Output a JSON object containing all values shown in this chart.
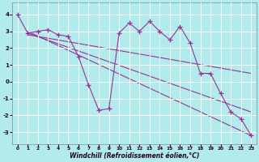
{
  "xlabel": "Windchill (Refroidissement éolien,°C)",
  "bg_color": "#b2ebeb",
  "grid_color": "#ffffff",
  "line_color": "#993399",
  "xlim": [
    -0.5,
    23.5
  ],
  "ylim": [
    -3.7,
    4.7
  ],
  "yticks": [
    -3,
    -2,
    -1,
    0,
    1,
    2,
    3,
    4
  ],
  "xticks": [
    0,
    1,
    2,
    3,
    4,
    5,
    6,
    7,
    8,
    9,
    10,
    11,
    12,
    13,
    14,
    15,
    16,
    17,
    18,
    19,
    20,
    21,
    22,
    23
  ],
  "series": {
    "line1_x": [
      0,
      1,
      2,
      3,
      4,
      5,
      6,
      7,
      8,
      9,
      10,
      11,
      12,
      13,
      14,
      15,
      16,
      17,
      18,
      19,
      20,
      21,
      22,
      23
    ],
    "line1_y": [
      4.0,
      2.9,
      3.0,
      3.1,
      2.8,
      2.7,
      1.5,
      -0.2,
      -1.7,
      -1.6,
      2.9,
      3.5,
      3.0,
      3.6,
      3.0,
      2.5,
      3.3,
      2.3,
      0.5,
      0.5,
      -0.7,
      -1.8,
      -2.2,
      -3.2
    ],
    "line2_x": [
      1,
      23
    ],
    "line2_y": [
      3.0,
      -3.2
    ],
    "line3_x": [
      1,
      23
    ],
    "line3_y": [
      2.9,
      -1.8
    ],
    "line4_x": [
      1,
      23
    ],
    "line4_y": [
      2.8,
      0.5
    ]
  },
  "marker": "+",
  "markersize": 4,
  "linewidth": 0.8
}
